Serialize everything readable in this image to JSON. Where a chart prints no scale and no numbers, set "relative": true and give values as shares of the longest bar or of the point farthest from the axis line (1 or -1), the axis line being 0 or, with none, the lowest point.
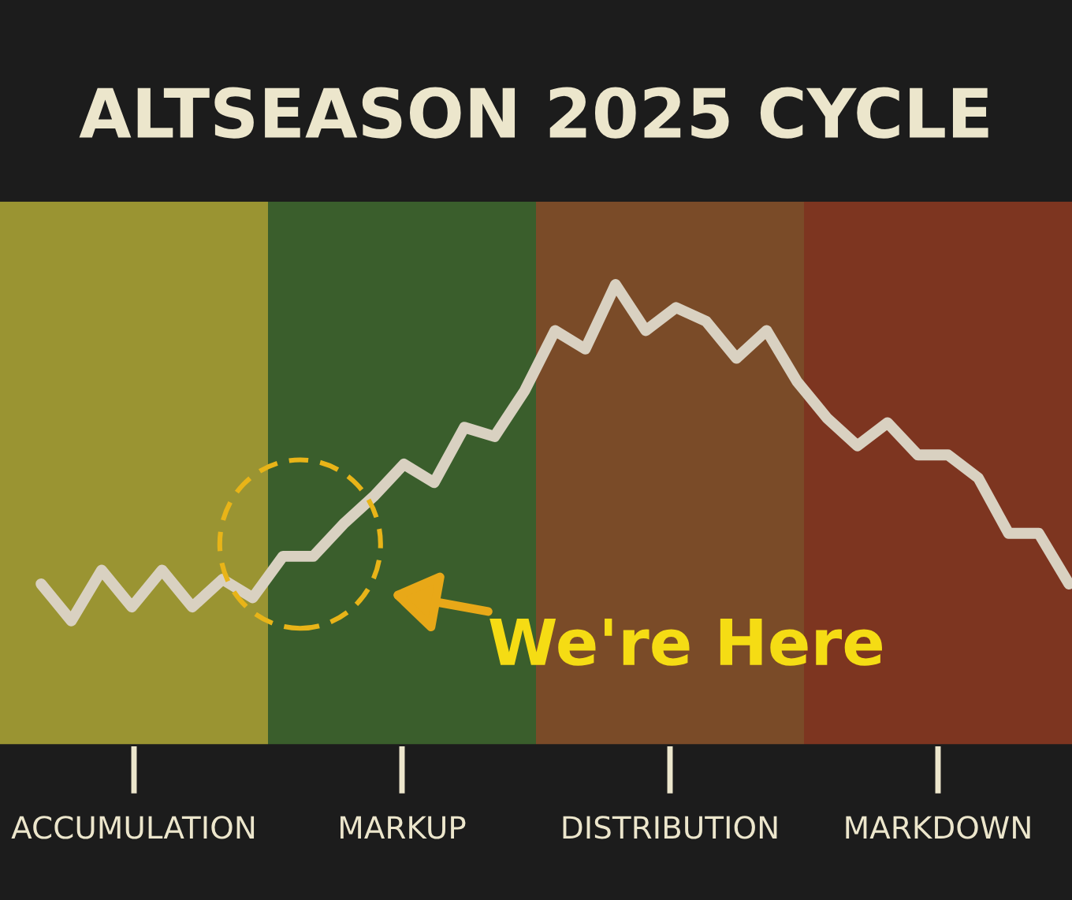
{
  "chart_data": [
    {
      "type": "bar",
      "title": "ALTSEASON 2025 CYCLE",
      "relative": true,
      "categories": [
        "ACCUMULATION",
        "MARKUP",
        "DISTRIBUTION",
        "MARKDOWN"
      ],
      "values": [
        1,
        1,
        1,
        1
      ],
      "colors": [
        "#9a9432",
        "#3a5e2c",
        "#7a4b28",
        "#7d3520"
      ],
      "legend": false,
      "tick_labels": "x"
    },
    {
      "type": "line",
      "relative": true,
      "categories": [
        null,
        null,
        null,
        null,
        null,
        null,
        null,
        null,
        null,
        null,
        null,
        null,
        null,
        null,
        null,
        null,
        null,
        null,
        null,
        null,
        null,
        null,
        null,
        null,
        null,
        null,
        null,
        null,
        null,
        null,
        null,
        null,
        null,
        null,
        null
      ],
      "series": [
        {
          "color": "#d9d1c1",
          "values": [
            0.35,
            0.27,
            0.38,
            0.3,
            0.38,
            0.3,
            0.36,
            0.32,
            0.41,
            0.41,
            0.48,
            0.54,
            0.61,
            0.57,
            0.69,
            0.67,
            0.77,
            0.9,
            0.86,
            1,
            0.9,
            0.95,
            0.92,
            0.84,
            0.9,
            0.79,
            0.71,
            0.65,
            0.7,
            0.63,
            0.63,
            0.58,
            0.46,
            0.46,
            0.35
          ]
        }
      ],
      "annotations": [
        "We're Here"
      ],
      "legend": false,
      "tick_labels": false,
      "marker": "none",
      "line_style": "solid"
    }
  ]
}
